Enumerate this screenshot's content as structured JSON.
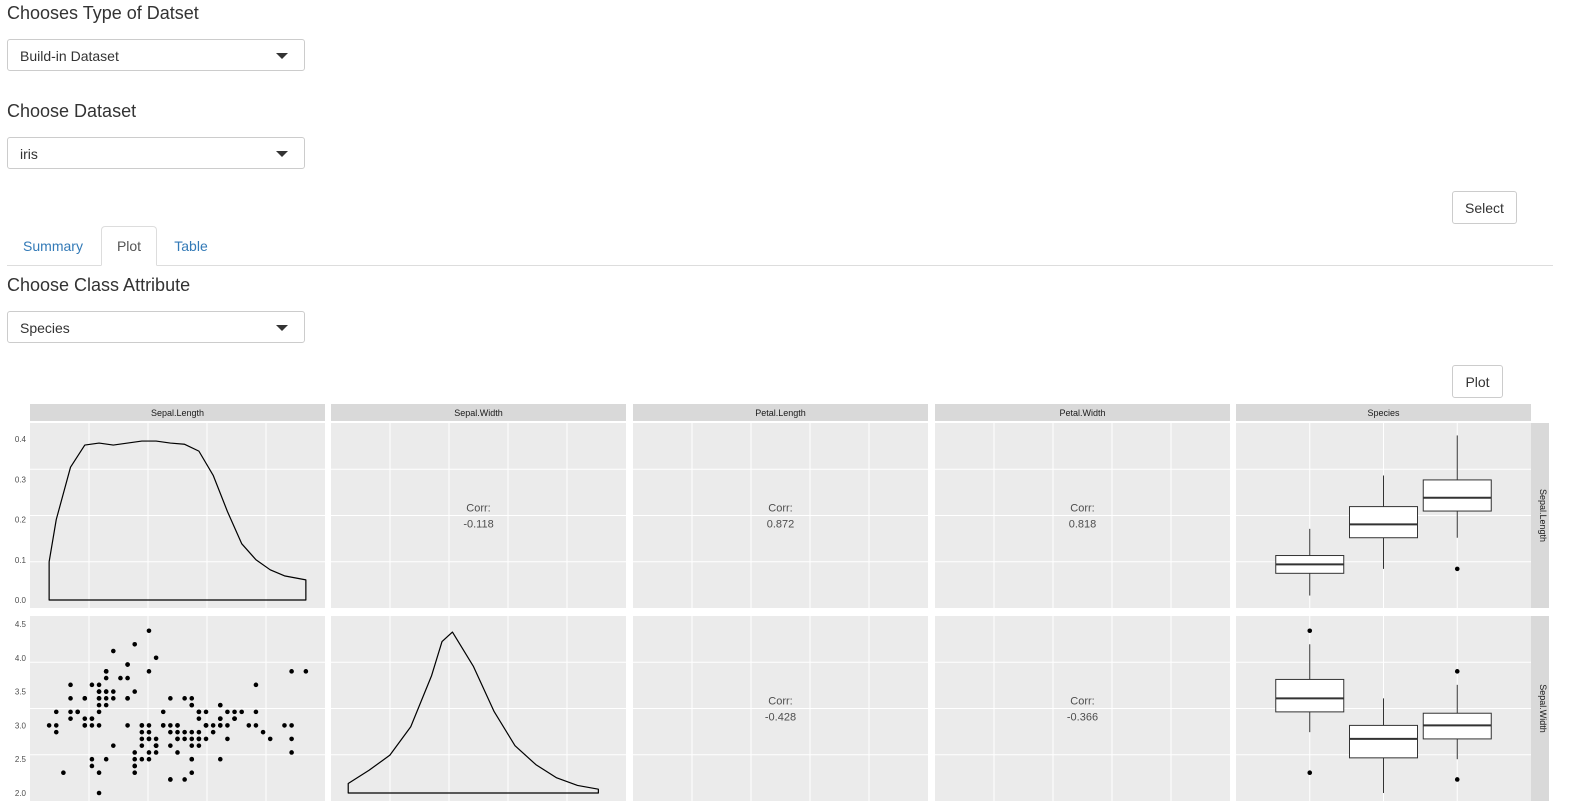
{
  "dataset_type": {
    "label": "Chooses Type of Datset",
    "selected": "Build-in Dataset"
  },
  "dataset": {
    "label": "Choose Dataset",
    "selected": "iris"
  },
  "select_button": "Select",
  "tabs": [
    {
      "label": "Summary",
      "active": false
    },
    {
      "label": "Plot",
      "active": true
    },
    {
      "label": "Table",
      "active": false
    }
  ],
  "class_attr": {
    "label": "Choose Class Attribute",
    "selected": "Species"
  },
  "plot_button": "Plot",
  "icons": {
    "caret": "caret-down-icon"
  },
  "chart_data": {
    "type": "scatter",
    "columns": [
      "Sepal.Length",
      "Sepal.Width",
      "Petal.Length",
      "Petal.Width",
      "Species"
    ],
    "rows": [
      "Sepal.Length",
      "Sepal.Width"
    ],
    "correlations": [
      {
        "label": "Corr:",
        "value": "-0.118"
      },
      {
        "label": "Corr:",
        "value": "0.872"
      },
      {
        "label": "Corr:",
        "value": "0.818"
      },
      {
        "label": "Corr:",
        "value": "-0.428"
      },
      {
        "label": "Corr:",
        "value": "-0.366"
      }
    ],
    "density_ylim": [
      0,
      0.42
    ],
    "density_yticks": [
      "0.0",
      "0.1",
      "0.2",
      "0.3",
      "0.4"
    ],
    "sepal_length_density": {
      "x": [
        4.3,
        4.4,
        4.6,
        4.8,
        5.0,
        5.2,
        5.4,
        5.6,
        5.8,
        6.0,
        6.2,
        6.4,
        6.6,
        6.8,
        7.0,
        7.2,
        7.4,
        7.6,
        7.9
      ],
      "y": [
        0.095,
        0.2,
        0.33,
        0.385,
        0.39,
        0.385,
        0.39,
        0.395,
        0.395,
        0.39,
        0.387,
        0.37,
        0.31,
        0.22,
        0.14,
        0.1,
        0.075,
        0.06,
        0.05
      ]
    },
    "sepal_width_density": {
      "x": [
        2.0,
        2.2,
        2.4,
        2.6,
        2.8,
        2.9,
        3.0,
        3.2,
        3.4,
        3.6,
        3.8,
        4.0,
        4.2,
        4.4
      ],
      "y": [
        0.05,
        0.12,
        0.2,
        0.35,
        0.62,
        0.8,
        0.85,
        0.67,
        0.43,
        0.25,
        0.15,
        0.08,
        0.04,
        0.02
      ]
    },
    "sepal_width_ylim": [
      2.0,
      4.5
    ],
    "sepal_width_yticks": [
      "2.0",
      "2.5",
      "3.0",
      "3.5",
      "4.0",
      "4.5"
    ],
    "scatter_points": [
      [
        5.1,
        3.5
      ],
      [
        4.9,
        3.0
      ],
      [
        4.7,
        3.2
      ],
      [
        4.6,
        3.1
      ],
      [
        5.0,
        3.6
      ],
      [
        5.4,
        3.9
      ],
      [
        4.6,
        3.4
      ],
      [
        5.0,
        3.4
      ],
      [
        4.4,
        2.9
      ],
      [
        4.9,
        3.1
      ],
      [
        5.4,
        3.7
      ],
      [
        4.8,
        3.4
      ],
      [
        4.8,
        3.0
      ],
      [
        4.3,
        3.0
      ],
      [
        5.8,
        4.0
      ],
      [
        5.7,
        4.4
      ],
      [
        5.4,
        3.9
      ],
      [
        5.1,
        3.5
      ],
      [
        5.7,
        3.8
      ],
      [
        5.1,
        3.8
      ],
      [
        5.4,
        3.4
      ],
      [
        5.1,
        3.7
      ],
      [
        4.6,
        3.6
      ],
      [
        5.1,
        3.3
      ],
      [
        4.8,
        3.4
      ],
      [
        5.0,
        3.0
      ],
      [
        5.0,
        3.4
      ],
      [
        5.2,
        3.5
      ],
      [
        5.2,
        3.4
      ],
      [
        4.7,
        3.2
      ],
      [
        4.8,
        3.1
      ],
      [
        5.4,
        3.4
      ],
      [
        5.2,
        4.1
      ],
      [
        5.5,
        4.2
      ],
      [
        4.9,
        3.1
      ],
      [
        5.0,
        3.2
      ],
      [
        5.5,
        3.5
      ],
      [
        4.9,
        3.6
      ],
      [
        4.4,
        3.0
      ],
      [
        5.1,
        3.4
      ],
      [
        5.0,
        3.5
      ],
      [
        4.5,
        2.3
      ],
      [
        4.4,
        3.2
      ],
      [
        5.0,
        3.5
      ],
      [
        5.1,
        3.8
      ],
      [
        4.8,
        3.0
      ],
      [
        5.1,
        3.8
      ],
      [
        4.6,
        3.2
      ],
      [
        5.3,
        3.7
      ],
      [
        5.0,
        3.3
      ],
      [
        7.0,
        3.2
      ],
      [
        6.4,
        3.2
      ],
      [
        6.9,
        3.1
      ],
      [
        5.5,
        2.3
      ],
      [
        6.5,
        2.8
      ],
      [
        5.7,
        2.8
      ],
      [
        6.3,
        3.3
      ],
      [
        4.9,
        2.4
      ],
      [
        6.6,
        2.9
      ],
      [
        5.2,
        2.7
      ],
      [
        5.0,
        2.0
      ],
      [
        5.9,
        3.0
      ],
      [
        6.0,
        2.2
      ],
      [
        6.1,
        2.9
      ],
      [
        5.6,
        2.9
      ],
      [
        6.7,
        3.1
      ],
      [
        5.6,
        3.0
      ],
      [
        5.8,
        2.7
      ],
      [
        6.2,
        2.2
      ],
      [
        5.6,
        2.5
      ],
      [
        5.9,
        3.2
      ],
      [
        6.1,
        2.8
      ],
      [
        6.3,
        2.5
      ],
      [
        6.1,
        2.8
      ],
      [
        6.4,
        2.9
      ],
      [
        6.6,
        3.0
      ],
      [
        6.8,
        2.8
      ],
      [
        6.7,
        3.0
      ],
      [
        6.0,
        2.9
      ],
      [
        5.7,
        2.6
      ],
      [
        5.5,
        2.4
      ],
      [
        5.5,
        2.4
      ],
      [
        5.8,
        2.7
      ],
      [
        6.0,
        2.7
      ],
      [
        5.4,
        3.0
      ],
      [
        6.0,
        3.4
      ],
      [
        6.7,
        3.1
      ],
      [
        6.3,
        2.3
      ],
      [
        5.6,
        3.0
      ],
      [
        5.5,
        2.5
      ],
      [
        5.5,
        2.6
      ],
      [
        6.1,
        3.0
      ],
      [
        5.8,
        2.6
      ],
      [
        5.0,
        2.3
      ],
      [
        5.6,
        2.7
      ],
      [
        5.7,
        3.0
      ],
      [
        5.7,
        2.9
      ],
      [
        6.2,
        2.9
      ],
      [
        5.1,
        2.5
      ],
      [
        5.7,
        2.8
      ],
      [
        6.3,
        3.3
      ],
      [
        5.8,
        2.7
      ],
      [
        7.1,
        3.0
      ],
      [
        6.3,
        2.9
      ],
      [
        6.5,
        3.0
      ],
      [
        7.6,
        3.0
      ],
      [
        4.9,
        2.5
      ],
      [
        7.3,
        2.9
      ],
      [
        6.7,
        2.5
      ],
      [
        7.2,
        3.6
      ],
      [
        6.5,
        3.2
      ],
      [
        6.4,
        2.7
      ],
      [
        6.8,
        3.0
      ],
      [
        5.7,
        2.5
      ],
      [
        5.8,
        2.8
      ],
      [
        6.4,
        3.2
      ],
      [
        6.5,
        3.0
      ],
      [
        7.7,
        3.8
      ],
      [
        7.7,
        2.6
      ],
      [
        6.0,
        2.2
      ],
      [
        6.9,
        3.2
      ],
      [
        5.6,
        2.8
      ],
      [
        7.7,
        2.8
      ],
      [
        6.3,
        2.7
      ],
      [
        6.7,
        3.3
      ],
      [
        7.2,
        3.2
      ],
      [
        6.2,
        2.8
      ],
      [
        6.1,
        3.0
      ],
      [
        6.4,
        2.8
      ],
      [
        7.2,
        3.0
      ],
      [
        7.4,
        2.8
      ],
      [
        7.9,
        3.8
      ],
      [
        6.4,
        2.8
      ],
      [
        6.3,
        2.8
      ],
      [
        6.1,
        2.6
      ],
      [
        7.7,
        3.0
      ],
      [
        6.3,
        3.4
      ],
      [
        6.4,
        3.1
      ],
      [
        6.0,
        3.0
      ],
      [
        6.9,
        3.1
      ],
      [
        6.7,
        3.1
      ],
      [
        6.9,
        3.1
      ],
      [
        5.8,
        2.7
      ],
      [
        6.8,
        3.2
      ],
      [
        6.7,
        3.3
      ],
      [
        6.7,
        3.0
      ],
      [
        6.3,
        2.5
      ],
      [
        6.5,
        3.0
      ],
      [
        6.2,
        3.4
      ],
      [
        5.9,
        3.0
      ]
    ],
    "boxplots": {
      "sepal_length": [
        {
          "min": 4.3,
          "q1": 4.8,
          "median": 5.0,
          "q3": 5.2,
          "max": 5.8,
          "outliers": []
        },
        {
          "min": 4.9,
          "q1": 5.6,
          "median": 5.9,
          "q3": 6.3,
          "max": 7.0,
          "outliers": []
        },
        {
          "min": 5.6,
          "q1": 6.2,
          "median": 6.5,
          "q3": 6.9,
          "max": 7.9,
          "outliers": [
            4.9
          ]
        }
      ],
      "sepal_width": [
        {
          "min": 2.9,
          "q1": 3.2,
          "median": 3.4,
          "q3": 3.68,
          "max": 4.2,
          "outliers": [
            2.3,
            4.4
          ]
        },
        {
          "min": 2.0,
          "q1": 2.52,
          "median": 2.8,
          "q3": 3.0,
          "max": 3.4,
          "outliers": []
        },
        {
          "min": 2.5,
          "q1": 2.8,
          "median": 3.0,
          "q3": 3.18,
          "max": 3.6,
          "outliers": [
            2.2,
            3.8
          ]
        }
      ]
    },
    "grid": true
  }
}
